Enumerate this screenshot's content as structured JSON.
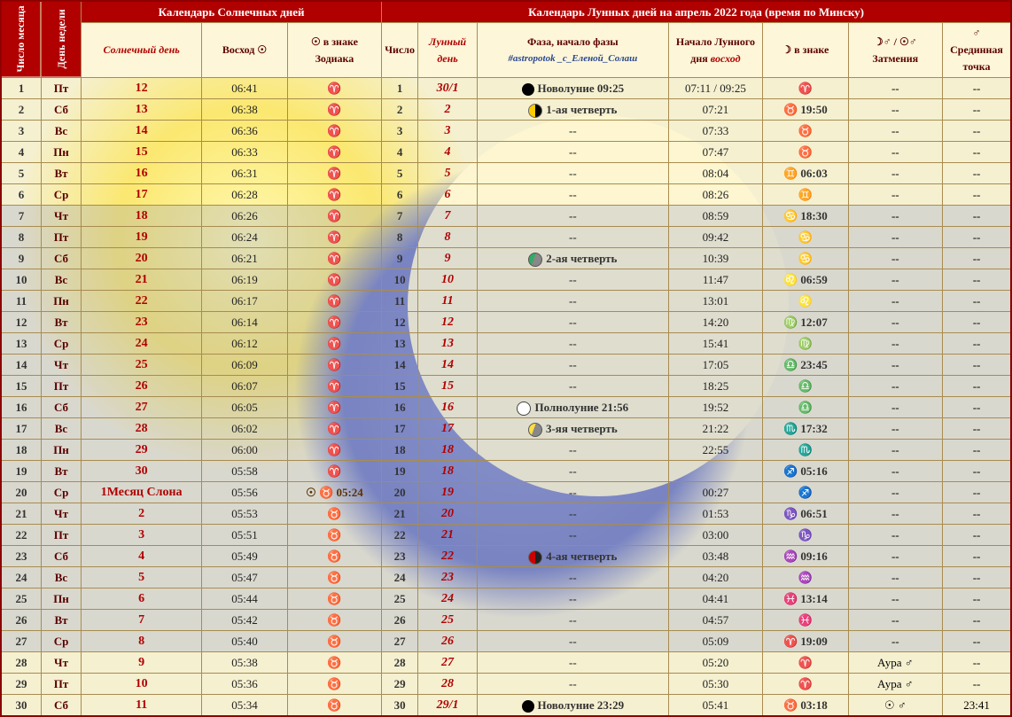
{
  "headers": {
    "solar_title": "Календарь Солнечных дней",
    "lunar_title": "Календарь Лунных дней на апрель 2022 года (время по Минску)",
    "num_month": "Число месяца",
    "dow": "День недели",
    "solar_day": "Солнечный день",
    "sunrise": "Восход ☉",
    "sun_sign": "☉ в знаке Зодиака",
    "lnum": "Число",
    "lunar_day": "Лунный день",
    "phase": "Фаза, начало фазы",
    "tag": "#astropotok _с_Еленой_Солаш",
    "moonrise": "Начало Лунного дня",
    "moonrise2": "восход",
    "moon_sign": "☽ в знаке",
    "eclipse": "☽♂ / ☉♂ Затмения",
    "midpoint": "♂ Срединная точка"
  },
  "rows": [
    {
      "n": 1,
      "dow": "Пт",
      "sd": "12",
      "rise": "06:41",
      "zs": "♈",
      "ln": 1,
      "ld": "30/1",
      "phi": "new",
      "ph": "Новолуние 09:25",
      "mr": "07:11 / 09:25",
      "ms": "♈",
      "ecl": "--",
      "mid": "--"
    },
    {
      "n": 2,
      "dow": "Сб",
      "sd": "13",
      "rise": "06:38",
      "zs": "♈",
      "ln": 2,
      "ld": "2",
      "phi": "first",
      "ph": "1-ая четверть",
      "mr": "07:21",
      "ms": "♉ 19:50",
      "ecl": "--",
      "mid": "--"
    },
    {
      "n": 3,
      "dow": "Вс",
      "sd": "14",
      "rise": "06:36",
      "zs": "♈",
      "ln": 3,
      "ld": "3",
      "phi": "",
      "ph": "--",
      "mr": "07:33",
      "ms": "♉",
      "ecl": "--",
      "mid": "--"
    },
    {
      "n": 4,
      "dow": "Пн",
      "sd": "15",
      "rise": "06:33",
      "zs": "♈",
      "ln": 4,
      "ld": "4",
      "phi": "",
      "ph": "--",
      "mr": "07:47",
      "ms": "♉",
      "ecl": "--",
      "mid": "--"
    },
    {
      "n": 5,
      "dow": "Вт",
      "sd": "16",
      "rise": "06:31",
      "zs": "♈",
      "ln": 5,
      "ld": "5",
      "phi": "",
      "ph": "--",
      "mr": "08:04",
      "ms": "♊ 06:03",
      "ecl": "--",
      "mid": "--"
    },
    {
      "n": 6,
      "dow": "Ср",
      "sd": "17",
      "rise": "06:28",
      "zs": "♈",
      "ln": 6,
      "ld": "6",
      "phi": "",
      "ph": "--",
      "mr": "08:26",
      "ms": "♊",
      "ecl": "--",
      "mid": "--"
    },
    {
      "n": 7,
      "dow": "Чт",
      "sd": "18",
      "rise": "06:26",
      "zs": "♈",
      "ln": 7,
      "ld": "7",
      "phi": "",
      "ph": "--",
      "mr": "08:59",
      "ms": "♋ 18:30",
      "ecl": "--",
      "mid": "--",
      "blue": 1
    },
    {
      "n": 8,
      "dow": "Пт",
      "sd": "19",
      "rise": "06:24",
      "zs": "♈",
      "ln": 8,
      "ld": "8",
      "phi": "",
      "ph": "--",
      "mr": "09:42",
      "ms": "♋",
      "ecl": "--",
      "mid": "--",
      "blue": 1
    },
    {
      "n": 9,
      "dow": "Сб",
      "sd": "20",
      "rise": "06:21",
      "zs": "♈",
      "ln": 9,
      "ld": "9",
      "phi": "cresc",
      "ph": "2-ая четверть",
      "mr": "10:39",
      "ms": "♋",
      "ecl": "--",
      "mid": "--",
      "blue": 1
    },
    {
      "n": 10,
      "dow": "Вс",
      "sd": "21",
      "rise": "06:19",
      "zs": "♈",
      "ln": 10,
      "ld": "10",
      "phi": "",
      "ph": "--",
      "mr": "11:47",
      "ms": "♌ 06:59",
      "ecl": "--",
      "mid": "--",
      "blue": 1
    },
    {
      "n": 11,
      "dow": "Пн",
      "sd": "22",
      "rise": "06:17",
      "zs": "♈",
      "ln": 11,
      "ld": "11",
      "phi": "",
      "ph": "--",
      "mr": "13:01",
      "ms": "♌",
      "ecl": "--",
      "mid": "--",
      "blue": 1
    },
    {
      "n": 12,
      "dow": "Вт",
      "sd": "23",
      "rise": "06:14",
      "zs": "♈",
      "ln": 12,
      "ld": "12",
      "phi": "",
      "ph": "--",
      "mr": "14:20",
      "ms": "♍ 12:07",
      "ecl": "--",
      "mid": "--",
      "blue": 1
    },
    {
      "n": 13,
      "dow": "Ср",
      "sd": "24",
      "rise": "06:12",
      "zs": "♈",
      "ln": 13,
      "ld": "13",
      "phi": "",
      "ph": "--",
      "mr": "15:41",
      "ms": "♍",
      "ecl": "--",
      "mid": "--",
      "blue": 1
    },
    {
      "n": 14,
      "dow": "Чт",
      "sd": "25",
      "rise": "06:09",
      "zs": "♈",
      "ln": 14,
      "ld": "14",
      "phi": "",
      "ph": "--",
      "mr": "17:05",
      "ms": "♎ 23:45",
      "ecl": "--",
      "mid": "--",
      "blue": 1
    },
    {
      "n": 15,
      "dow": "Пт",
      "sd": "26",
      "rise": "06:07",
      "zs": "♈",
      "ln": 15,
      "ld": "15",
      "phi": "",
      "ph": "--",
      "mr": "18:25",
      "ms": "♎",
      "ecl": "--",
      "mid": "--",
      "blue": 1
    },
    {
      "n": 16,
      "dow": "Сб",
      "sd": "27",
      "rise": "06:05",
      "zs": "♈",
      "ln": 16,
      "ld": "16",
      "phi": "full",
      "ph": "Полнолуние 21:56",
      "mr": "19:52",
      "ms": "♎",
      "ecl": "--",
      "mid": "--",
      "blue": 1
    },
    {
      "n": 17,
      "dow": "Вс",
      "sd": "28",
      "rise": "06:02",
      "zs": "♈",
      "ln": 17,
      "ld": "17",
      "phi": "wane",
      "ph": "3-яя четверть",
      "mr": "21:22",
      "ms": "♏ 17:32",
      "ecl": "--",
      "mid": "--",
      "blue": 1
    },
    {
      "n": 18,
      "dow": "Пн",
      "sd": "29",
      "rise": "06:00",
      "zs": "♈",
      "ln": 18,
      "ld": "18",
      "phi": "",
      "ph": "--",
      "mr": "22:55",
      "ms": "♏",
      "ecl": "--",
      "mid": "--",
      "blue": 1
    },
    {
      "n": 19,
      "dow": "Вт",
      "sd": "30",
      "rise": "05:58",
      "zs": "♈",
      "ln": 19,
      "ld": "18",
      "phi": "",
      "ph": "--",
      "mr": "",
      "ms": "♐ 05:16",
      "ecl": "--",
      "mid": "--",
      "blue": 1
    },
    {
      "n": 20,
      "dow": "Ср",
      "sd": "1Месяц Слона",
      "rise": "05:56",
      "zs": "☉ ♉ 05:24",
      "ln": 20,
      "ld": "19",
      "phi": "",
      "ph": "--",
      "mr": "00:27",
      "ms": "♐",
      "ecl": "--",
      "mid": "--",
      "blue": 1
    },
    {
      "n": 21,
      "dow": "Чт",
      "sd": "2",
      "rise": "05:53",
      "zs": "♉",
      "ln": 21,
      "ld": "20",
      "phi": "",
      "ph": "--",
      "mr": "01:53",
      "ms": "♑ 06:51",
      "ecl": "--",
      "mid": "--",
      "blue": 1
    },
    {
      "n": 22,
      "dow": "Пт",
      "sd": "3",
      "rise": "05:51",
      "zs": "♉",
      "ln": 22,
      "ld": "21",
      "phi": "",
      "ph": "--",
      "mr": "03:00",
      "ms": "♑",
      "ecl": "--",
      "mid": "--",
      "blue": 1
    },
    {
      "n": 23,
      "dow": "Сб",
      "sd": "4",
      "rise": "05:49",
      "zs": "♉",
      "ln": 23,
      "ld": "22",
      "phi": "last",
      "ph": "4-ая четверть",
      "mr": "03:48",
      "ms": "♒ 09:16",
      "ecl": "--",
      "mid": "--",
      "blue": 1
    },
    {
      "n": 24,
      "dow": "Вс",
      "sd": "5",
      "rise": "05:47",
      "zs": "♉",
      "ln": 24,
      "ld": "23",
      "phi": "",
      "ph": "--",
      "mr": "04:20",
      "ms": "♒",
      "ecl": "--",
      "mid": "--",
      "blue": 1
    },
    {
      "n": 25,
      "dow": "Пн",
      "sd": "6",
      "rise": "05:44",
      "zs": "♉",
      "ln": 25,
      "ld": "24",
      "phi": "",
      "ph": "--",
      "mr": "04:41",
      "ms": "♓ 13:14",
      "ecl": "--",
      "mid": "--",
      "blue": 1
    },
    {
      "n": 26,
      "dow": "Вт",
      "sd": "7",
      "rise": "05:42",
      "zs": "♉",
      "ln": 26,
      "ld": "25",
      "phi": "",
      "ph": "--",
      "mr": "04:57",
      "ms": "♓",
      "ecl": "--",
      "mid": "--",
      "blue": 1
    },
    {
      "n": 27,
      "dow": "Ср",
      "sd": "8",
      "rise": "05:40",
      "zs": "♉",
      "ln": 27,
      "ld": "26",
      "phi": "",
      "ph": "--",
      "mr": "05:09",
      "ms": "♈ 19:09",
      "ecl": "--",
      "mid": "--",
      "blue": 1
    },
    {
      "n": 28,
      "dow": "Чт",
      "sd": "9",
      "rise": "05:38",
      "zs": "♉",
      "ln": 28,
      "ld": "27",
      "phi": "",
      "ph": "--",
      "mr": "05:20",
      "ms": "♈",
      "ecl": "Аура ♂",
      "mid": "--"
    },
    {
      "n": 29,
      "dow": "Пт",
      "sd": "10",
      "rise": "05:36",
      "zs": "♉",
      "ln": 29,
      "ld": "28",
      "phi": "",
      "ph": "--",
      "mr": "05:30",
      "ms": "♈",
      "ecl": "Аура ♂",
      "mid": "--"
    },
    {
      "n": 30,
      "dow": "Сб",
      "sd": "11",
      "rise": "05:34",
      "zs": "♉",
      "ln": 30,
      "ld": "29/1",
      "phi": "new",
      "ph": "Новолуние 23:29",
      "mr": "05:41",
      "ms": "♉ 03:18",
      "ecl": "☉ ♂",
      "mid": "23:41"
    }
  ]
}
